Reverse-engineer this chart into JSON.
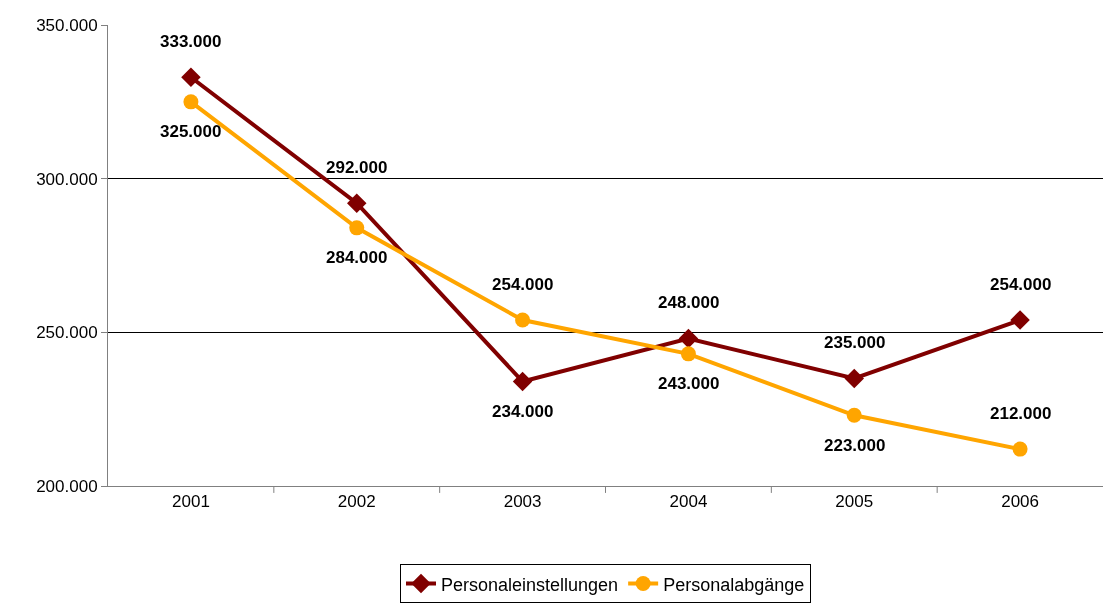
{
  "chart_data": {
    "type": "line",
    "categories": [
      "2001",
      "2002",
      "2003",
      "2004",
      "2005",
      "2006"
    ],
    "series": [
      {
        "name": "Personaleinstellungen",
        "color": "#800000",
        "marker": "diamond",
        "values": [
          333000,
          292000,
          234000,
          248000,
          235000,
          254000
        ],
        "value_labels": [
          "333.000",
          "292.000",
          "234.000",
          "248.000",
          "235.000",
          "254.000"
        ]
      },
      {
        "name": "Personalabgänge",
        "color": "#ffa500",
        "marker": "circle",
        "values": [
          325000,
          284000,
          254000,
          243000,
          223000,
          212000
        ],
        "value_labels": [
          "325.000",
          "284.000",
          "254.000",
          "243.000",
          "223.000",
          "212.000"
        ]
      }
    ],
    "ylim": [
      200000,
      350000
    ],
    "yticks": [
      {
        "value": 200000,
        "label": "200.000"
      },
      {
        "value": 250000,
        "label": "250.000"
      },
      {
        "value": 300000,
        "label": "300.000"
      },
      {
        "value": 350000,
        "label": "350.000"
      }
    ],
    "grid": "y",
    "legend": "bottom",
    "line_style": "solid"
  }
}
